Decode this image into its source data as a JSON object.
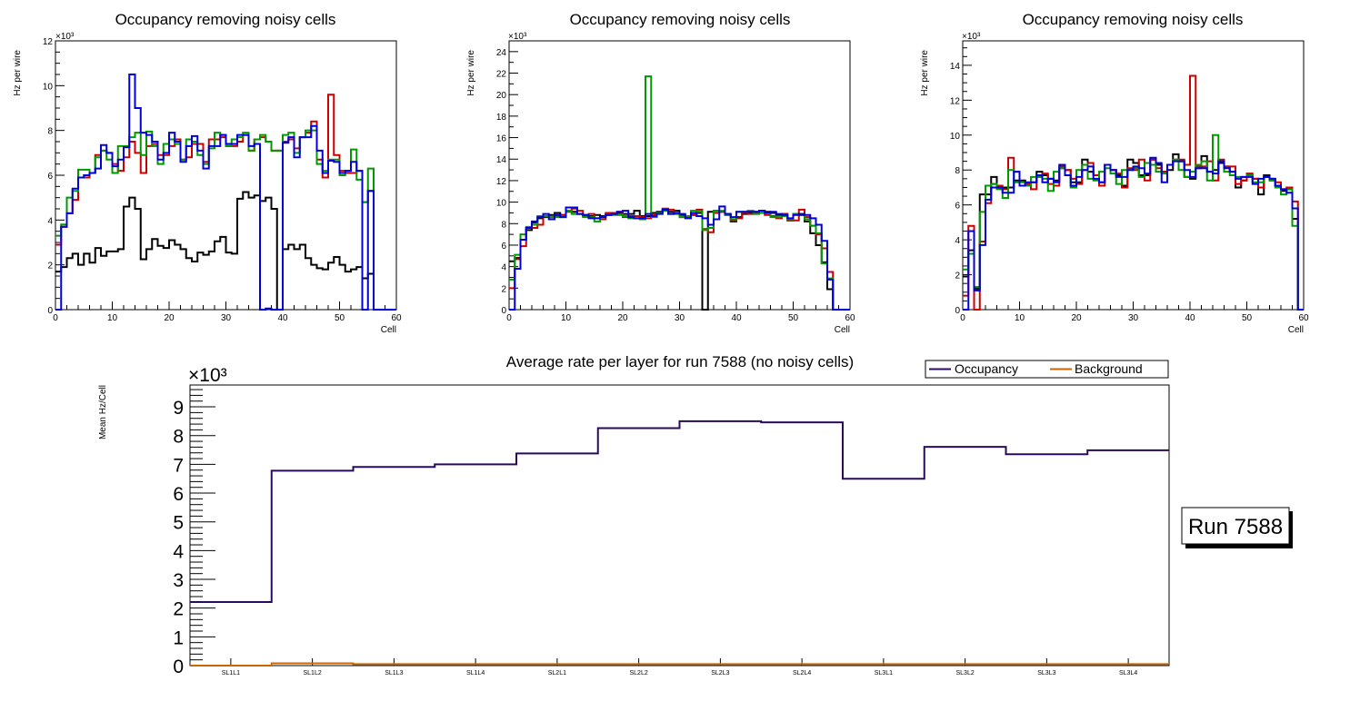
{
  "chart_data": [
    {
      "type": "line",
      "subtype": "step-histogram",
      "title": "Occupancy removing noisy cells",
      "xlabel": "Cell",
      "ylabel": "Hz per wire",
      "yscale_label": "×10³",
      "xlim": [
        0,
        60
      ],
      "ylim": [
        0,
        12
      ],
      "xticks": [
        "0",
        "10",
        "20",
        "30",
        "40",
        "50",
        "60"
      ],
      "yticks": [
        "0",
        "2",
        "4",
        "6",
        "8",
        "10",
        "12"
      ],
      "series": [
        {
          "name": "black",
          "color": "#000000",
          "values": [
            1.7,
            1.9,
            2.3,
            2.5,
            2.0,
            2.5,
            2.1,
            2.75,
            2.4,
            2.6,
            2.6,
            2.7,
            4.6,
            5.0,
            4.5,
            2.25,
            2.7,
            3.15,
            2.85,
            2.75,
            3.1,
            2.9,
            2.7,
            2.3,
            2.15,
            2.55,
            2.45,
            2.6,
            3.05,
            3.25,
            2.55,
            2.5,
            4.95,
            5.25,
            5.0,
            5.1,
            4.85,
            5.0,
            4.5,
            0,
            2.7,
            2.9,
            2.7,
            2.9,
            2.3,
            2.0,
            1.85,
            1.8,
            2.1,
            2.35,
            2.0,
            1.7,
            1.8,
            1.9,
            1.4,
            1.6,
            0,
            0,
            0,
            0
          ]
        },
        {
          "name": "red",
          "color": "#cc0000",
          "values": [
            2.9,
            3.7,
            4.3,
            4.9,
            5.9,
            5.9,
            6.1,
            6.9,
            7.1,
            7.0,
            6.5,
            6.2,
            6.8,
            7.5,
            7.0,
            6.1,
            7.3,
            7.4,
            6.9,
            6.9,
            7.3,
            7.6,
            6.7,
            6.8,
            7.4,
            7.4,
            6.6,
            7.6,
            7.6,
            7.7,
            7.3,
            7.3,
            7.5,
            7.8,
            7.1,
            7.6,
            7.7,
            7.5,
            7.1,
            7.1,
            7.5,
            7.6,
            7.2,
            7.7,
            7.9,
            8.4,
            6.7,
            5.9,
            9.6,
            6.9,
            6.2,
            6.1,
            6.1,
            6.2,
            4.8,
            5.3,
            0,
            0,
            0,
            0
          ]
        },
        {
          "name": "green",
          "color": "#009900",
          "values": [
            3.3,
            3.8,
            5.0,
            5.3,
            6.25,
            6.25,
            6.1,
            6.8,
            7.1,
            6.7,
            6.1,
            7.3,
            7.3,
            7.7,
            7.9,
            6.9,
            7.95,
            7.3,
            6.5,
            7.4,
            7.6,
            7.4,
            6.7,
            7.6,
            7.5,
            6.9,
            6.5,
            7.2,
            7.9,
            7.8,
            7.3,
            7.6,
            7.7,
            7.9,
            7.1,
            7.6,
            7.8,
            7.5,
            7.1,
            7.1,
            7.8,
            7.9,
            7.0,
            7.7,
            8.0,
            8.0,
            6.5,
            6.2,
            6.7,
            6.7,
            6.0,
            6.2,
            7.15,
            5.8,
            4.8,
            6.3,
            0,
            0,
            0,
            0
          ]
        },
        {
          "name": "blue",
          "color": "#0000dd",
          "values": [
            0,
            3.7,
            4.3,
            5.4,
            5.9,
            6.0,
            6.1,
            6.3,
            7.35,
            7.0,
            6.4,
            6.7,
            7.25,
            10.5,
            9.0,
            7.9,
            7.8,
            7.5,
            6.7,
            7.0,
            7.9,
            7.5,
            6.6,
            7.3,
            7.75,
            7.1,
            6.3,
            7.3,
            7.3,
            7.8,
            7.4,
            7.4,
            7.8,
            7.8,
            7.3,
            7.4,
            0,
            0.05,
            0,
            0,
            7.45,
            7.7,
            6.8,
            7.7,
            7.7,
            8.2,
            7.1,
            6.1,
            6.65,
            6.6,
            6.1,
            6.2,
            6.6,
            6.2,
            0,
            5.3,
            0,
            0,
            0,
            0
          ]
        }
      ]
    },
    {
      "type": "line",
      "subtype": "step-histogram",
      "title": "Occupancy removing noisy cells",
      "xlabel": "Cell",
      "ylabel": "Hz per wire",
      "yscale_label": "×10³",
      "xlim": [
        0,
        60
      ],
      "ylim": [
        0,
        25
      ],
      "xticks": [
        "0",
        "10",
        "20",
        "30",
        "40",
        "50",
        "60"
      ],
      "yticks": [
        "0",
        "2",
        "4",
        "6",
        "8",
        "10",
        "12",
        "14",
        "16",
        "18",
        "20",
        "22",
        "24"
      ],
      "series": [
        {
          "name": "black",
          "color": "#000000",
          "values": [
            4.5,
            4.8,
            6.5,
            7.4,
            8.1,
            8.5,
            8.6,
            8.8,
            9.0,
            8.8,
            9.2,
            9.1,
            8.9,
            8.8,
            8.7,
            8.8,
            8.7,
            8.8,
            8.9,
            9.0,
            8.9,
            8.9,
            9.2,
            8.7,
            8.7,
            9.0,
            9.1,
            9.3,
            9.1,
            9.2,
            8.8,
            8.7,
            8.8,
            9.0,
            0,
            9.1,
            9.2,
            9.1,
            8.9,
            8.2,
            8.6,
            8.9,
            9.0,
            9.1,
            9.2,
            9.1,
            9.0,
            8.8,
            8.9,
            8.3,
            8.9,
            8.8,
            8.2,
            7.1,
            6.0,
            4.4,
            1.9,
            0,
            0,
            0
          ]
        },
        {
          "name": "red",
          "color": "#cc0000",
          "values": [
            2.0,
            4.7,
            5.9,
            7.6,
            7.6,
            7.9,
            8.7,
            8.6,
            8.7,
            8.8,
            9.1,
            9.4,
            9.2,
            8.7,
            8.9,
            8.5,
            8.4,
            9.0,
            9.0,
            9.1,
            8.6,
            8.7,
            8.7,
            8.6,
            8.5,
            8.8,
            9.0,
            9.4,
            9.3,
            8.9,
            8.6,
            8.6,
            8.8,
            9.3,
            7.5,
            7.2,
            9.0,
            9.1,
            8.8,
            8.3,
            8.5,
            9.0,
            8.9,
            9.0,
            9.0,
            8.8,
            8.7,
            8.5,
            8.9,
            8.3,
            8.3,
            9.3,
            8.6,
            7.8,
            7.0,
            5.7,
            3.5,
            0,
            0,
            0
          ]
        },
        {
          "name": "green",
          "color": "#009900",
          "values": [
            2.8,
            5.1,
            7.0,
            7.7,
            7.9,
            8.7,
            8.7,
            8.6,
            8.6,
            8.6,
            9.2,
            8.9,
            8.9,
            8.6,
            8.6,
            8.2,
            8.6,
            8.8,
            8.8,
            8.8,
            8.7,
            8.5,
            8.5,
            8.4,
            21.7,
            8.6,
            9.0,
            9.2,
            8.9,
            8.9,
            8.6,
            8.7,
            9.2,
            9.2,
            7.4,
            7.6,
            9.2,
            9.2,
            8.8,
            8.4,
            9.1,
            9.1,
            9.2,
            8.9,
            9.0,
            9.0,
            8.6,
            8.6,
            8.7,
            8.4,
            8.9,
            8.9,
            8.4,
            7.8,
            7.1,
            4.3,
            2.9,
            0,
            0,
            0
          ]
        },
        {
          "name": "blue",
          "color": "#0000dd",
          "values": [
            0,
            3.8,
            6.5,
            7.6,
            8.2,
            8.6,
            8.9,
            8.4,
            8.8,
            8.6,
            9.5,
            9.5,
            8.9,
            8.8,
            8.5,
            8.5,
            8.6,
            8.8,
            8.9,
            9.1,
            9.2,
            8.6,
            8.5,
            8.5,
            8.9,
            8.7,
            8.9,
            9.3,
            8.9,
            9.0,
            8.9,
            8.5,
            9.0,
            8.7,
            8.5,
            7.9,
            8.4,
            9.6,
            8.9,
            8.6,
            9.1,
            9.1,
            9.1,
            9.1,
            9.2,
            9.0,
            9.1,
            8.9,
            8.8,
            8.5,
            8.8,
            8.9,
            8.8,
            8.5,
            7.9,
            6.4,
            2.8,
            0,
            0,
            0
          ]
        }
      ]
    },
    {
      "type": "line",
      "subtype": "step-histogram",
      "title": "Occupancy removing noisy cells",
      "xlabel": "Cell",
      "ylabel": "Hz per wire",
      "yscale_label": "×10³",
      "xlim": [
        0,
        60
      ],
      "ylim": [
        0,
        15.4
      ],
      "xticks": [
        "0",
        "10",
        "20",
        "30",
        "40",
        "50",
        "60"
      ],
      "yticks": [
        "0",
        "2",
        "4",
        "6",
        "8",
        "10",
        "12",
        "14"
      ],
      "series": [
        {
          "name": "black",
          "color": "#000000",
          "values": [
            1.9,
            3.4,
            1.2,
            6.6,
            6.6,
            7.6,
            7.0,
            7.0,
            7.0,
            7.4,
            7.4,
            7.2,
            7.3,
            7.9,
            7.7,
            7.5,
            7.4,
            8.1,
            8.0,
            7.3,
            7.3,
            8.6,
            7.9,
            7.7,
            7.3,
            8.3,
            8.0,
            7.7,
            7.1,
            8.6,
            8.4,
            7.7,
            7.7,
            8.6,
            8.3,
            7.9,
            8.0,
            8.9,
            8.5,
            7.6,
            7.5,
            8.1,
            8.8,
            7.9,
            8.0,
            8.4,
            8.2,
            7.9,
            7.0,
            7.4,
            7.7,
            7.5,
            6.6,
            7.7,
            7.5,
            7.1,
            6.8,
            6.9,
            5.2,
            0
          ]
        },
        {
          "name": "red",
          "color": "#cc0000",
          "values": [
            0.8,
            4.8,
            0,
            3.9,
            6.1,
            7.2,
            7.1,
            6.9,
            8.7,
            7.9,
            7.1,
            7.2,
            6.9,
            7.6,
            7.8,
            7.2,
            7.1,
            8.2,
            8.0,
            7.5,
            7.2,
            8.0,
            8.4,
            7.7,
            7.1,
            8.3,
            8.0,
            7.8,
            7.0,
            8.1,
            8.0,
            8.6,
            7.4,
            8.6,
            8.1,
            7.9,
            8.3,
            8.6,
            8.6,
            8.3,
            13.4,
            8.2,
            8.2,
            8.5,
            7.4,
            8.6,
            8.2,
            8.2,
            7.2,
            7.4,
            7.8,
            7.5,
            7.0,
            7.6,
            7.4,
            7.3,
            6.9,
            7.0,
            6.2,
            0
          ]
        },
        {
          "name": "green",
          "color": "#009900",
          "values": [
            2.3,
            3.2,
            1.3,
            5.6,
            7.1,
            7.2,
            6.9,
            6.4,
            8.0,
            7.3,
            7.3,
            7.1,
            7.6,
            7.6,
            7.5,
            6.8,
            7.9,
            8.1,
            7.7,
            7.0,
            8.0,
            8.3,
            7.5,
            7.4,
            7.9,
            8.1,
            7.8,
            7.2,
            8.0,
            8.0,
            8.1,
            7.6,
            8.4,
            8.3,
            7.9,
            7.8,
            8.3,
            8.6,
            8.0,
            7.6,
            7.9,
            8.3,
            8.5,
            7.4,
            10.0,
            8.5,
            7.9,
            7.7,
            7.6,
            7.6,
            7.7,
            7.3,
            7.3,
            7.6,
            7.4,
            7.0,
            6.6,
            6.9,
            4.8,
            0
          ]
        },
        {
          "name": "blue",
          "color": "#0000dd",
          "values": [
            0,
            4.5,
            1.1,
            3.7,
            6.3,
            7.0,
            7.0,
            6.7,
            6.7,
            7.9,
            7.1,
            7.3,
            7.3,
            7.7,
            7.3,
            7.5,
            7.3,
            8.3,
            7.7,
            7.1,
            7.6,
            8.0,
            8.2,
            7.5,
            7.3,
            8.3,
            8.0,
            7.6,
            7.6,
            8.0,
            8.2,
            8.1,
            7.8,
            8.7,
            8.4,
            7.3,
            8.3,
            8.5,
            8.5,
            8.0,
            7.6,
            8.1,
            8.1,
            7.9,
            7.8,
            8.5,
            8.1,
            7.9,
            7.5,
            7.6,
            7.6,
            7.2,
            7.5,
            7.6,
            7.5,
            7.1,
            6.9,
            6.7,
            5.8,
            0
          ]
        }
      ]
    },
    {
      "type": "line",
      "subtype": "step-histogram",
      "title": "Average rate per layer for run 7588 (no noisy cells)",
      "xlabel": "",
      "ylabel": "Mean Hz/Cell",
      "yscale_label": "×10³",
      "ylim": [
        0,
        9.76
      ],
      "categories": [
        "SL1L1",
        "SL1L2",
        "SL1L3",
        "SL1L4",
        "SL2L1",
        "SL2L2",
        "SL2L3",
        "SL2L4",
        "SL3L1",
        "SL3L2",
        "SL3L3",
        "SL3L4"
      ],
      "yticks": [
        "0",
        "1",
        "2",
        "3",
        "4",
        "5",
        "6",
        "7",
        "8",
        "9"
      ],
      "legend_position": "top-right",
      "series": [
        {
          "name": "Occupancy",
          "color": "#2a0a5e",
          "values": [
            2.21,
            6.78,
            6.91,
            7.0,
            7.38,
            8.26,
            8.5,
            8.46,
            6.5,
            7.61,
            7.35,
            7.49
          ]
        },
        {
          "name": "Background",
          "color": "#cc6600",
          "values": [
            0.0,
            0.08,
            0.05,
            0.05,
            0.05,
            0.05,
            0.05,
            0.05,
            0.05,
            0.05,
            0.05,
            0.05
          ]
        }
      ],
      "annotation": "Run 7588"
    }
  ]
}
